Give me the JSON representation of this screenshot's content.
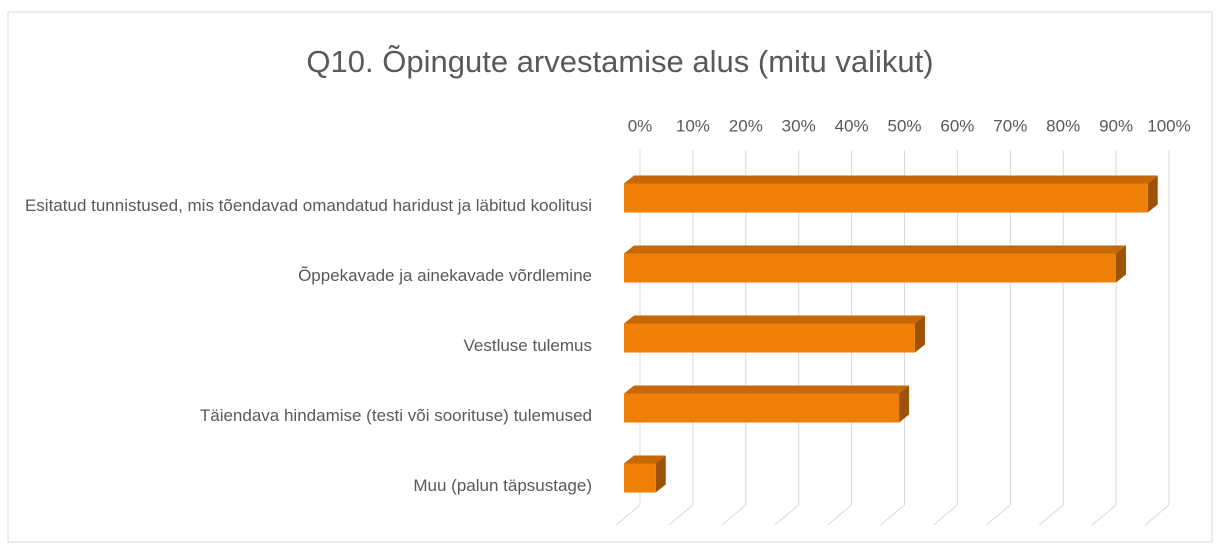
{
  "chart_data": {
    "type": "bar3d_horizontal",
    "title": "Q10. Õpingute arvestamise alus (mitu valikut)",
    "categories": [
      "Esitatud tunnistused, mis tõendavad omandatud haridust ja läbitud koolitusi",
      "Õppekavade ja ainekavade võrdlemine",
      "Vestluse tulemus",
      "Täiendava hindamise (testi või soorituse) tulemused",
      "Muu (palun täpsustage)"
    ],
    "values": [
      99,
      93,
      55,
      52,
      6
    ],
    "color": "#f07f09",
    "xlim": [
      0,
      100
    ],
    "xticks": [
      {
        "value": 0,
        "label": "0%"
      },
      {
        "value": 10,
        "label": "10%"
      },
      {
        "value": 20,
        "label": "20%"
      },
      {
        "value": 30,
        "label": "30%"
      },
      {
        "value": 40,
        "label": "40%"
      },
      {
        "value": 50,
        "label": "50%"
      },
      {
        "value": 60,
        "label": "60%"
      },
      {
        "value": 70,
        "label": "70%"
      },
      {
        "value": 80,
        "label": "80%"
      },
      {
        "value": 90,
        "label": "90%"
      },
      {
        "value": 100,
        "label": "100%"
      }
    ],
    "grid": true
  }
}
